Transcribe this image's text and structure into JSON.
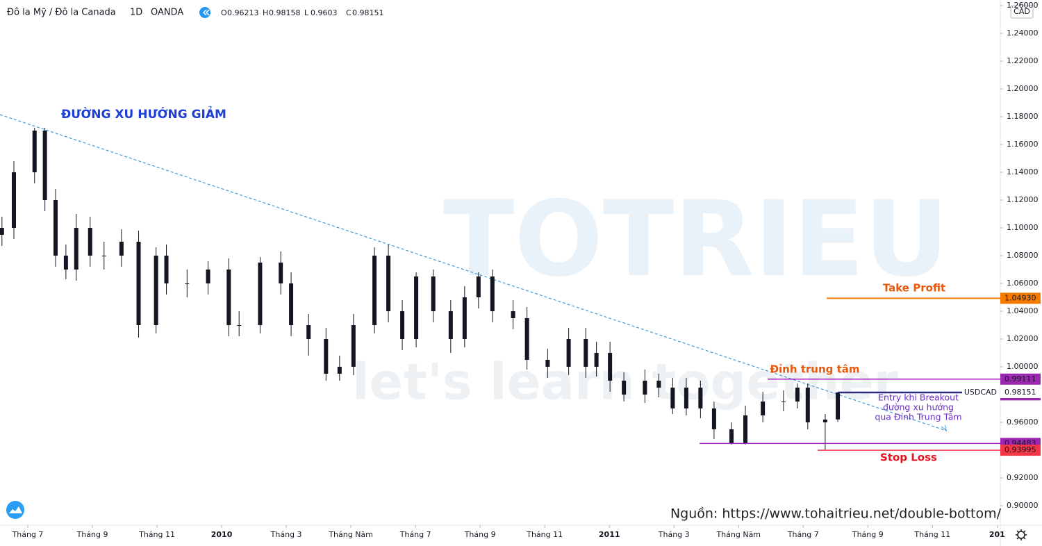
{
  "chart_data": {
    "type": "candlestick",
    "header": {
      "symbol": "Đô la Mỹ / Đô la Canada",
      "interval": "1D",
      "source": "OANDA",
      "o": "O",
      "h": "H",
      "l": "L",
      "c": "C"
    },
    "currency": "CAD",
    "ticker": "USDCAD",
    "color": "#131722",
    "x": [
      5.2,
      5.57,
      6.21,
      6.53,
      6.86,
      7.18,
      7.5,
      7.93,
      8.36,
      8.9,
      9.43,
      9.97,
      10.29,
      10.93,
      11.58,
      12.22,
      12.54,
      13.19,
      13.83,
      14.15,
      14.69,
      15.23,
      15.65,
      16.08,
      16.73,
      17.16,
      17.59,
      18.02,
      18.55,
      19.09,
      19.52,
      19.95,
      20.38,
      21.02,
      21.45,
      22.09,
      22.74,
      23.27,
      23.6,
      24.02,
      24.45,
      25.1,
      25.53,
      25.96,
      26.38,
      26.82,
      27.24,
      27.78,
      28.21,
      28.75,
      29.39,
      29.82,
      30.14,
      30.68,
      31.07
    ],
    "open": [
      1.095,
      1.1,
      1.14,
      1.17,
      1.12,
      1.08,
      1.07,
      1.1,
      1.08,
      1.08,
      1.09,
      1.03,
      1.08,
      1.06,
      1.06,
      1.07,
      1.03,
      1.03,
      1.075,
      1.06,
      1.03,
      1.02,
      0.995,
      1.0,
      1.03,
      1.08,
      1.04,
      1.02,
      1.065,
      1.04,
      1.02,
      1.05,
      1.065,
      1.04,
      1.035,
      1.005,
      1.0,
      1.02,
      1.0,
      1.01,
      0.99,
      0.98,
      0.99,
      0.985,
      0.97,
      0.985,
      0.97,
      0.955,
      0.945,
      0.965,
      0.975,
      0.975,
      0.985,
      0.96,
      0.96213
    ],
    "high": [
      1.108,
      1.148,
      1.172,
      1.172,
      1.128,
      1.088,
      1.11,
      1.108,
      1.09,
      1.099,
      1.098,
      1.086,
      1.088,
      1.07,
      1.076,
      1.078,
      1.04,
      1.079,
      1.083,
      1.068,
      1.038,
      1.028,
      1.008,
      1.038,
      1.086,
      1.088,
      1.048,
      1.068,
      1.07,
      1.048,
      1.058,
      1.068,
      1.07,
      1.048,
      1.043,
      1.013,
      1.028,
      1.028,
      1.018,
      1.018,
      0.996,
      0.998,
      0.995,
      0.992,
      0.992,
      0.99,
      0.975,
      0.96,
      0.972,
      0.982,
      0.983,
      0.988,
      0.988,
      0.966,
      0.98158
    ],
    "low": [
      1.087,
      1.092,
      1.132,
      1.112,
      1.072,
      1.063,
      1.062,
      1.072,
      1.07,
      1.072,
      1.021,
      1.024,
      1.052,
      1.05,
      1.052,
      1.022,
      1.022,
      1.024,
      1.052,
      1.022,
      1.008,
      0.99,
      0.99,
      0.994,
      1.024,
      1.032,
      1.012,
      1.014,
      1.032,
      1.01,
      1.014,
      1.042,
      1.032,
      1.027,
      0.998,
      0.992,
      0.994,
      0.992,
      0.993,
      0.982,
      0.975,
      0.974,
      0.978,
      0.966,
      0.965,
      0.963,
      0.948,
      0.944,
      0.944,
      0.96,
      0.968,
      0.97,
      0.955,
      0.94,
      0.9603
    ],
    "close": [
      1.1,
      1.14,
      1.17,
      1.12,
      1.08,
      1.07,
      1.1,
      1.08,
      1.08,
      1.09,
      1.03,
      1.08,
      1.06,
      1.06,
      1.07,
      1.03,
      1.03,
      1.075,
      1.06,
      1.03,
      1.02,
      0.995,
      1.0,
      1.03,
      1.08,
      1.04,
      1.02,
      1.065,
      1.04,
      1.02,
      1.05,
      1.065,
      1.04,
      1.035,
      1.005,
      1.0,
      1.02,
      1.0,
      1.01,
      0.99,
      0.98,
      0.99,
      0.985,
      0.97,
      0.985,
      0.97,
      0.955,
      0.945,
      0.965,
      0.975,
      0.975,
      0.985,
      0.96,
      0.962,
      0.98151
    ],
    "xlim": [
      5.14,
      36.1
    ],
    "xticks": [
      {
        "value": 6,
        "label": "Tháng 7"
      },
      {
        "value": 8,
        "label": "Tháng 9"
      },
      {
        "value": 10,
        "label": "Tháng 11"
      },
      {
        "value": 12,
        "label": "2010"
      },
      {
        "value": 14,
        "label": "Tháng 3"
      },
      {
        "value": 16,
        "label": "Tháng Năm"
      },
      {
        "value": 18,
        "label": "Tháng 7"
      },
      {
        "value": 20,
        "label": "Tháng 9"
      },
      {
        "value": 22,
        "label": "Tháng 11"
      },
      {
        "value": 24,
        "label": "2011"
      },
      {
        "value": 26,
        "label": "Tháng 3"
      },
      {
        "value": 28,
        "label": "Tháng Năm"
      },
      {
        "value": 30,
        "label": "Tháng 7"
      },
      {
        "value": 32,
        "label": "Tháng 9"
      },
      {
        "value": 34,
        "label": "Tháng 11"
      },
      {
        "value": 36,
        "label": "201"
      }
    ],
    "ylim": [
      0.886,
      1.26
    ],
    "yticks": [
      {
        "value": 0.9,
        "label": "0.90000"
      },
      {
        "value": 0.92,
        "label": "0.92000"
      },
      {
        "value": 0.94,
        "label": "0.94000"
      },
      {
        "value": 0.96,
        "label": "0.96000"
      },
      {
        "value": 1.0,
        "label": "1.00000"
      },
      {
        "value": 1.02,
        "label": "1.02000"
      },
      {
        "value": 1.04,
        "label": "1.04000"
      },
      {
        "value": 1.06,
        "label": "1.06000"
      },
      {
        "value": 1.08,
        "label": "1.08000"
      },
      {
        "value": 1.1,
        "label": "1.10000"
      },
      {
        "value": 1.12,
        "label": "1.12000"
      },
      {
        "value": 1.14,
        "label": "1.14000"
      },
      {
        "value": 1.16,
        "label": "1.16000"
      },
      {
        "value": 1.18,
        "label": "1.18000"
      },
      {
        "value": 1.2,
        "label": "1.20000"
      },
      {
        "value": 1.22,
        "label": "1.22000"
      },
      {
        "value": 1.24,
        "label": "1.24000"
      },
      {
        "value": 1.26,
        "label": "1.26000"
      }
    ],
    "levels": [
      {
        "value": 1.0493,
        "label": "1.04930",
        "color": "#f57c00"
      },
      {
        "value": 0.99111,
        "color": "#9c27b0"
      },
      {
        "value": 0.98233,
        "color": "#9c27b0"
      },
      {
        "value": 0.94483,
        "color": "#9c27b0"
      },
      {
        "value": 0.93995,
        "label": "0.93995",
        "color": "#f23645"
      }
    ],
    "trendline": {
      "x": [
        5.14,
        34.43
      ],
      "y": [
        1.1815,
        0.954
      ],
      "color": "#3a9ad9"
    },
    "annotations": [
      {
        "text": "ĐƯỜNG XU HƯỚNG GIẢM",
        "color": "#1e3fd6"
      },
      {
        "text": "Take Profit",
        "color": "#e8590c"
      },
      {
        "text": "Đỉnh trung tâm",
        "color": "#e8590c"
      },
      {
        "lines": [
          "Entry khi Breakout",
          "đường xu hướng",
          "qua Đỉnh Trung Tâm"
        ],
        "color": "#6a2fc0"
      },
      {
        "text": "Stop Loss",
        "color": "#e3141e"
      }
    ],
    "watermark": [
      "TOTRIEU",
      "let's learn together"
    ],
    "source_note": "Nguồn: https://www.tohaitrieu.net/double-bottom/"
  }
}
